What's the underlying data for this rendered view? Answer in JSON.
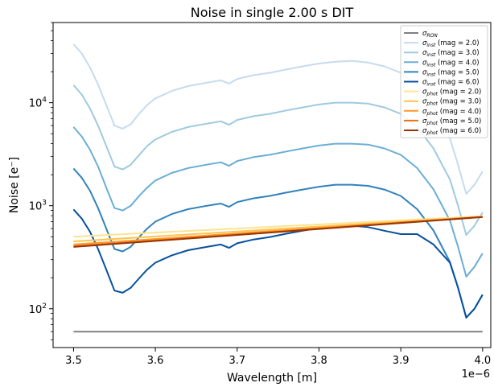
{
  "chart_data": {
    "type": "line",
    "title": "Noise in single 2.00 s DIT",
    "xlabel": "Wavelength [m]",
    "ylabel": "Noise [e⁻]",
    "x_offset_label": "1e−6",
    "yscale": "log",
    "xlim": [
      3.475,
      4.01
    ],
    "ylim": [
      42,
      60000
    ],
    "x_ticks": [
      {
        "value": 3.5,
        "label": "3.5"
      },
      {
        "value": 3.6,
        "label": "3.6"
      },
      {
        "value": 3.7,
        "label": "3.7"
      },
      {
        "value": 3.8,
        "label": "3.8"
      },
      {
        "value": 3.9,
        "label": "3.9"
      },
      {
        "value": 4.0,
        "label": "4.0"
      }
    ],
    "y_ticks": [
      {
        "value": 100,
        "base": "10",
        "exp": "2"
      },
      {
        "value": 1000,
        "base": "10",
        "exp": "3"
      },
      {
        "value": 10000,
        "base": "10",
        "exp": "4"
      }
    ],
    "legend_position": "upper right",
    "series": [
      {
        "sigma": "σ",
        "sub": "RON",
        "suffix": "",
        "color": "#808080",
        "points": [
          [
            3.5,
            60
          ],
          [
            4.0,
            60
          ]
        ]
      },
      {
        "sigma": "σ",
        "sub": "inst",
        "suffix": " (mag = 2.0)",
        "color": "#c6dbef",
        "points": [
          [
            3.5,
            37000
          ],
          [
            3.51,
            30000
          ],
          [
            3.52,
            22000
          ],
          [
            3.53,
            15000
          ],
          [
            3.54,
            9500
          ],
          [
            3.55,
            6000
          ],
          [
            3.56,
            5600
          ],
          [
            3.57,
            6200
          ],
          [
            3.58,
            7800
          ],
          [
            3.59,
            9500
          ],
          [
            3.6,
            11000
          ],
          [
            3.62,
            13000
          ],
          [
            3.64,
            14500
          ],
          [
            3.66,
            15500
          ],
          [
            3.68,
            16500
          ],
          [
            3.69,
            15300
          ],
          [
            3.7,
            17000
          ],
          [
            3.72,
            18500
          ],
          [
            3.74,
            19500
          ],
          [
            3.76,
            21000
          ],
          [
            3.78,
            22500
          ],
          [
            3.8,
            24000
          ],
          [
            3.82,
            25000
          ],
          [
            3.84,
            25500
          ],
          [
            3.86,
            24500
          ],
          [
            3.88,
            22500
          ],
          [
            3.9,
            19500
          ],
          [
            3.92,
            14500
          ],
          [
            3.94,
            9000
          ],
          [
            3.96,
            4500
          ],
          [
            3.97,
            2500
          ],
          [
            3.98,
            1300
          ],
          [
            3.99,
            1600
          ],
          [
            4.0,
            2150
          ]
        ]
      },
      {
        "sigma": "σ",
        "sub": "inst",
        "suffix": " (mag = 3.0)",
        "color": "#9ecae1",
        "points": [
          [
            3.5,
            14800
          ],
          [
            3.51,
            12000
          ],
          [
            3.52,
            8800
          ],
          [
            3.53,
            6000
          ],
          [
            3.54,
            3800
          ],
          [
            3.55,
            2400
          ],
          [
            3.56,
            2250
          ],
          [
            3.57,
            2500
          ],
          [
            3.58,
            3100
          ],
          [
            3.59,
            3800
          ],
          [
            3.6,
            4400
          ],
          [
            3.62,
            5200
          ],
          [
            3.64,
            5800
          ],
          [
            3.66,
            6200
          ],
          [
            3.68,
            6600
          ],
          [
            3.69,
            6100
          ],
          [
            3.7,
            6800
          ],
          [
            3.72,
            7400
          ],
          [
            3.74,
            7800
          ],
          [
            3.76,
            8400
          ],
          [
            3.78,
            9000
          ],
          [
            3.8,
            9600
          ],
          [
            3.82,
            10000
          ],
          [
            3.84,
            10000
          ],
          [
            3.86,
            9800
          ],
          [
            3.88,
            9000
          ],
          [
            3.9,
            7800
          ],
          [
            3.92,
            5800
          ],
          [
            3.94,
            3600
          ],
          [
            3.96,
            1800
          ],
          [
            3.97,
            1000
          ],
          [
            3.98,
            520
          ],
          [
            3.99,
            640
          ],
          [
            4.0,
            860
          ]
        ]
      },
      {
        "sigma": "σ",
        "sub": "inst",
        "suffix": " (mag = 4.0)",
        "color": "#6baed6",
        "points": [
          [
            3.5,
            5800
          ],
          [
            3.51,
            4700
          ],
          [
            3.52,
            3500
          ],
          [
            3.53,
            2400
          ],
          [
            3.54,
            1500
          ],
          [
            3.55,
            950
          ],
          [
            3.56,
            900
          ],
          [
            3.57,
            1000
          ],
          [
            3.58,
            1240
          ],
          [
            3.59,
            1500
          ],
          [
            3.6,
            1760
          ],
          [
            3.62,
            2080
          ],
          [
            3.64,
            2320
          ],
          [
            3.66,
            2480
          ],
          [
            3.68,
            2640
          ],
          [
            3.69,
            2440
          ],
          [
            3.7,
            2720
          ],
          [
            3.72,
            2960
          ],
          [
            3.74,
            3120
          ],
          [
            3.76,
            3360
          ],
          [
            3.78,
            3600
          ],
          [
            3.8,
            3840
          ],
          [
            3.82,
            4000
          ],
          [
            3.84,
            4000
          ],
          [
            3.86,
            3920
          ],
          [
            3.88,
            3600
          ],
          [
            3.9,
            3120
          ],
          [
            3.92,
            2320
          ],
          [
            3.94,
            1440
          ],
          [
            3.96,
            720
          ],
          [
            3.97,
            400
          ],
          [
            3.98,
            205
          ],
          [
            3.99,
            255
          ],
          [
            4.0,
            345
          ]
        ]
      },
      {
        "sigma": "σ",
        "sub": "inst",
        "suffix": " (mag = 5.0)",
        "color": "#3182bd",
        "points": [
          [
            3.5,
            2300
          ],
          [
            3.51,
            1870
          ],
          [
            3.52,
            1400
          ],
          [
            3.53,
            950
          ],
          [
            3.54,
            600
          ],
          [
            3.55,
            380
          ],
          [
            3.56,
            360
          ],
          [
            3.57,
            400
          ],
          [
            3.58,
            495
          ],
          [
            3.59,
            600
          ],
          [
            3.6,
            700
          ],
          [
            3.62,
            830
          ],
          [
            3.64,
            925
          ],
          [
            3.66,
            990
          ],
          [
            3.68,
            1050
          ],
          [
            3.69,
            975
          ],
          [
            3.7,
            1085
          ],
          [
            3.72,
            1180
          ],
          [
            3.74,
            1245
          ],
          [
            3.76,
            1340
          ],
          [
            3.78,
            1435
          ],
          [
            3.8,
            1530
          ],
          [
            3.82,
            1600
          ],
          [
            3.84,
            1600
          ],
          [
            3.86,
            1560
          ],
          [
            3.88,
            1435
          ],
          [
            3.9,
            1245
          ],
          [
            3.92,
            925
          ],
          [
            3.94,
            575
          ],
          [
            3.96,
            285
          ],
          [
            3.97,
            160
          ],
          [
            3.98,
            82
          ],
          [
            3.99,
            100
          ],
          [
            4.0,
            137
          ]
        ]
      },
      {
        "sigma": "σ",
        "sub": "inst",
        "suffix": " (mag = 6.0)",
        "color": "#08519c",
        "points": [
          [
            3.5,
            920
          ],
          [
            3.51,
            750
          ],
          [
            3.52,
            560
          ],
          [
            3.53,
            380
          ],
          [
            3.54,
            240
          ],
          [
            3.55,
            150
          ],
          [
            3.56,
            143
          ],
          [
            3.57,
            160
          ],
          [
            3.58,
            197
          ],
          [
            3.59,
            240
          ],
          [
            3.6,
            280
          ],
          [
            3.62,
            330
          ],
          [
            3.64,
            370
          ],
          [
            3.66,
            395
          ],
          [
            3.68,
            420
          ],
          [
            3.69,
            390
          ],
          [
            3.7,
            432
          ],
          [
            3.72,
            470
          ],
          [
            3.74,
            497
          ],
          [
            3.76,
            535
          ],
          [
            3.78,
            572
          ],
          [
            3.8,
            610
          ],
          [
            3.82,
            640
          ],
          [
            3.84,
            640
          ],
          [
            3.86,
            620
          ],
          [
            3.88,
            572
          ],
          [
            3.9,
            530
          ],
          [
            3.92,
            530
          ],
          [
            3.94,
            420
          ],
          [
            3.96,
            280
          ],
          [
            3.97,
            160
          ],
          [
            3.98,
            82
          ],
          [
            3.99,
            100
          ],
          [
            4.0,
            137
          ]
        ]
      },
      {
        "sigma": "σ",
        "sub": "phot",
        "suffix": " (mag = 2.0)",
        "color": "#fee391",
        "points": [
          [
            3.5,
            500
          ],
          [
            4.0,
            790
          ]
        ]
      },
      {
        "sigma": "σ",
        "sub": "phot",
        "suffix": " (mag = 3.0)",
        "color": "#fec44f",
        "points": [
          [
            3.5,
            450
          ],
          [
            4.0,
            785
          ]
        ]
      },
      {
        "sigma": "σ",
        "sub": "phot",
        "suffix": " (mag = 4.0)",
        "color": "#fe9929",
        "points": [
          [
            3.5,
            420
          ],
          [
            4.0,
            780
          ]
        ]
      },
      {
        "sigma": "σ",
        "sub": "phot",
        "suffix": " (mag = 5.0)",
        "color": "#ec7014",
        "points": [
          [
            3.5,
            405
          ],
          [
            4.0,
            778
          ]
        ]
      },
      {
        "sigma": "σ",
        "sub": "phot",
        "suffix": " (mag = 6.0)",
        "color": "#993404",
        "points": [
          [
            3.5,
            398
          ],
          [
            4.0,
            776
          ]
        ]
      }
    ]
  }
}
